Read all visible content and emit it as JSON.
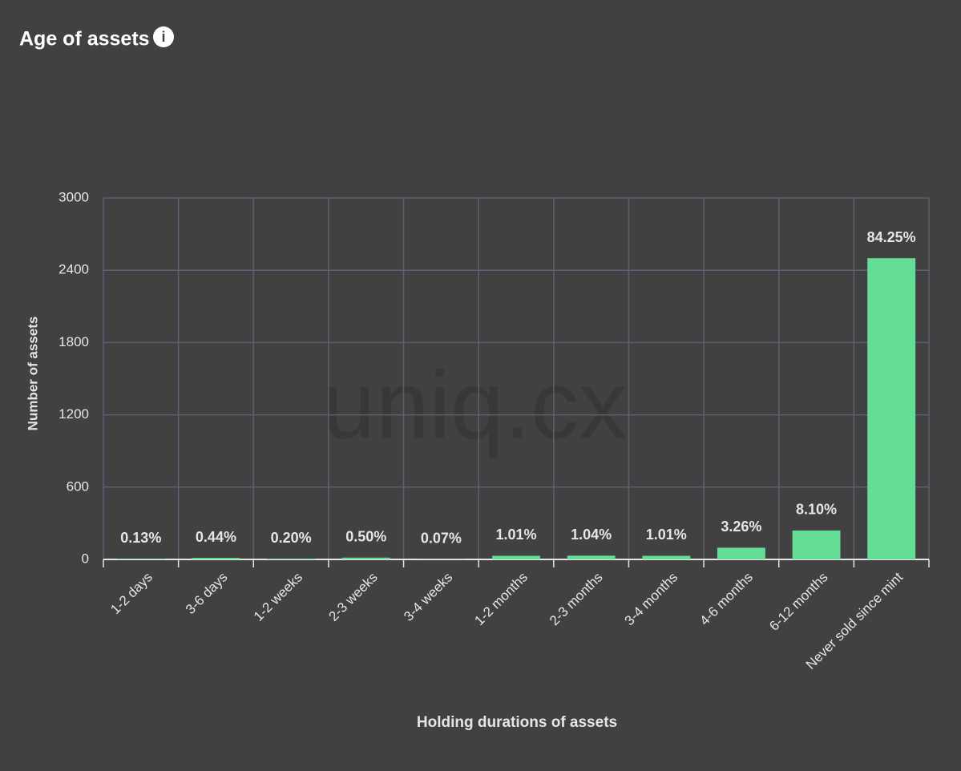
{
  "chart_data": {
    "type": "bar",
    "title": "Age of assets",
    "watermark": "uniq.cx",
    "x_label": "Holding durations of assets",
    "y_label": "Number of assets",
    "categories": [
      "1-2 days",
      "3-6 days",
      "1-2 weeks",
      "2-3 weeks",
      "3-4 weeks",
      "1-2 months",
      "2-3 months",
      "3-4 months",
      "4-6 months",
      "6-12 months",
      "Never sold since mint"
    ],
    "values": [
      4,
      13,
      6,
      15,
      2,
      30,
      31,
      30,
      97,
      240,
      2500
    ],
    "percent_labels": [
      "0.13%",
      "0.44%",
      "0.20%",
      "0.50%",
      "0.07%",
      "1.01%",
      "1.04%",
      "1.01%",
      "3.26%",
      "8.10%",
      "84.25%"
    ],
    "color": "#64dd97",
    "ylim": [
      0,
      3000
    ],
    "yticks": [
      0,
      600,
      1200,
      1800,
      2400,
      3000
    ],
    "grid": true
  }
}
